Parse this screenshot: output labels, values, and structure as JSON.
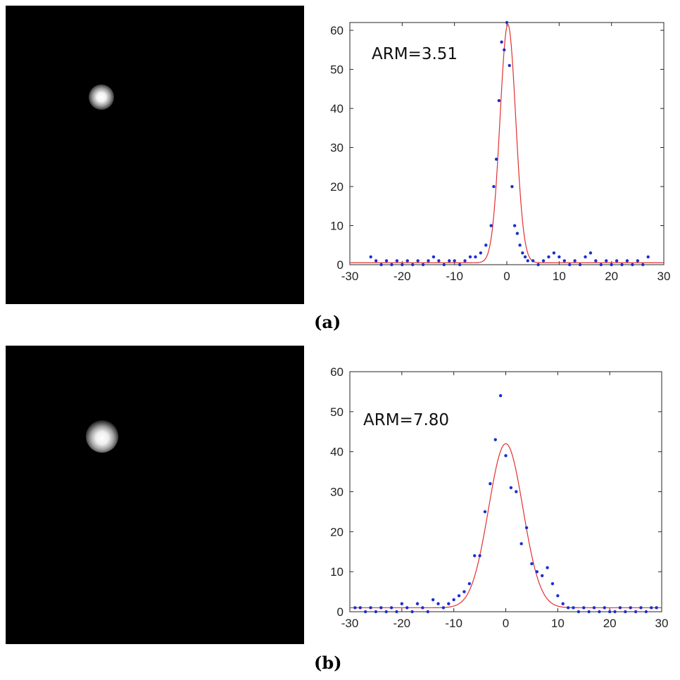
{
  "chart_data": [
    {
      "type": "scatter",
      "panel_label": "(a)",
      "annotation": "ARM=3.51",
      "xlim": [
        -30,
        30
      ],
      "ylim": [
        0,
        62
      ],
      "xticks": [
        -30,
        -20,
        -10,
        0,
        10,
        20,
        30
      ],
      "yticks": [
        0,
        10,
        20,
        30,
        40,
        50,
        60
      ],
      "fit": {
        "type": "gaussian",
        "amplitude": 61,
        "mean": 0.2,
        "sigma": 1.5,
        "offset": 0.5,
        "color": "#e03030"
      },
      "marker_color": "#1a2fd0",
      "points": {
        "x": [
          -26,
          -25,
          -24,
          -23,
          -22,
          -21,
          -20,
          -19,
          -18,
          -17,
          -16,
          -15,
          -14,
          -13,
          -12,
          -11,
          -10,
          -9,
          -8,
          -7,
          -6,
          -5,
          -4,
          -3,
          -2.5,
          -2,
          -1.5,
          -1,
          -0.5,
          0,
          0.5,
          1,
          1.5,
          2,
          2.5,
          3,
          3.5,
          4,
          5,
          6,
          7,
          8,
          9,
          10,
          11,
          12,
          13,
          14,
          15,
          16,
          17,
          18,
          19,
          20,
          21,
          22,
          23,
          24,
          25,
          26,
          27
        ],
        "y": [
          2,
          1,
          0,
          1,
          0,
          1,
          0,
          1,
          0,
          1,
          0,
          1,
          2,
          1,
          0,
          1,
          1,
          0,
          1,
          2,
          2,
          3,
          5,
          10,
          20,
          27,
          42,
          57,
          55,
          62,
          51,
          20,
          10,
          8,
          5,
          3,
          2,
          1,
          1,
          0,
          1,
          2,
          3,
          2,
          1,
          0,
          1,
          0,
          2,
          3,
          1,
          0,
          1,
          0,
          1,
          0,
          1,
          0,
          1,
          0,
          2
        ]
      }
    },
    {
      "type": "scatter",
      "panel_label": "(b)",
      "annotation": "ARM=7.80",
      "xlim": [
        -30,
        30
      ],
      "ylim": [
        0,
        60
      ],
      "xticks": [
        -30,
        -20,
        -10,
        0,
        10,
        20,
        30
      ],
      "yticks": [
        0,
        10,
        20,
        30,
        40,
        50,
        60
      ],
      "fit": {
        "type": "gaussian",
        "amplitude": 41,
        "mean": 0,
        "sigma": 3.3,
        "offset": 1,
        "color": "#e03030"
      },
      "marker_color": "#1a2fd0",
      "points": {
        "x": [
          -29,
          -28,
          -27,
          -26,
          -25,
          -24,
          -23,
          -22,
          -21,
          -20,
          -19,
          -18,
          -17,
          -16,
          -15,
          -14,
          -13,
          -12,
          -11,
          -10,
          -9,
          -8,
          -7,
          -6,
          -5,
          -4,
          -3,
          -2,
          -1,
          0,
          1,
          2,
          3,
          4,
          5,
          6,
          7,
          8,
          9,
          10,
          11,
          12,
          13,
          14,
          15,
          16,
          17,
          18,
          19,
          20,
          21,
          22,
          23,
          24,
          25,
          26,
          27,
          28,
          29
        ],
        "y": [
          1,
          1,
          0,
          1,
          0,
          1,
          0,
          1,
          0,
          2,
          1,
          0,
          2,
          1,
          0,
          3,
          2,
          1,
          2,
          3,
          4,
          5,
          7,
          14,
          14,
          25,
          32,
          43,
          54,
          39,
          31,
          30,
          17,
          21,
          12,
          10,
          9,
          11,
          7,
          4,
          2,
          1,
          1,
          0,
          1,
          0,
          1,
          0,
          1,
          0,
          0,
          1,
          0,
          1,
          0,
          1,
          0,
          1,
          1
        ]
      }
    }
  ]
}
